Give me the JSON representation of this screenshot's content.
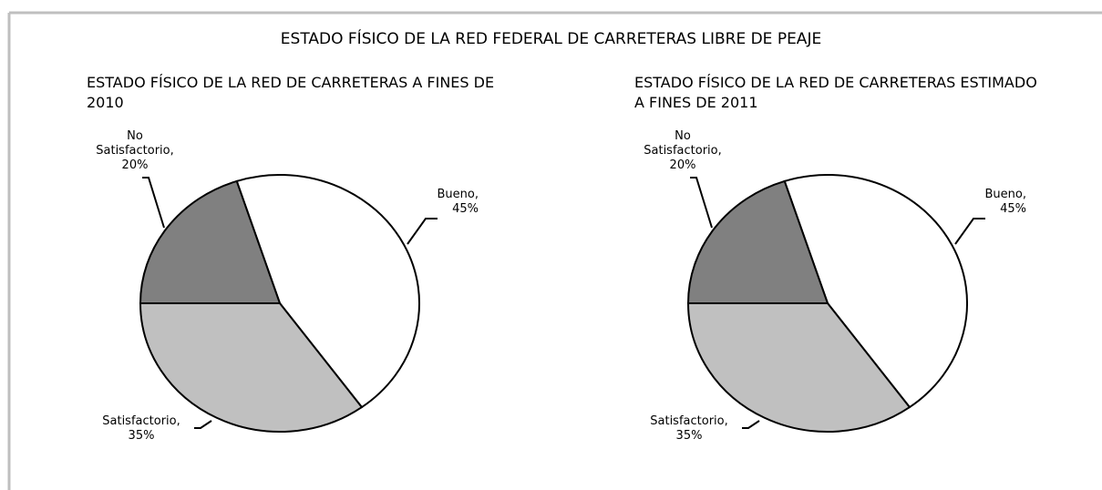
{
  "title": "ESTADO FÍSICO DE LA RED FEDERAL DE CARRETERAS LIBRE DE PEAJE",
  "chart_data": [
    {
      "type": "pie",
      "title": "ESTADO FÍSICO DE LA RED DE CARRETERAS A FINES DE 2010",
      "categories": [
        "Bueno,",
        "Satisfactorio,",
        "No Satisfactorio,"
      ],
      "values": [
        45,
        35,
        20
      ],
      "value_labels": [
        "45%",
        "35%",
        "20%"
      ],
      "colors": [
        "#ffffff",
        "#c0c0c0",
        "#808080"
      ],
      "startangle": -18
    },
    {
      "type": "pie",
      "title": "ESTADO FÍSICO DE LA RED DE CARRETERAS ESTIMADO A FINES DE 2011",
      "categories": [
        "Bueno,",
        "Satisfactorio,",
        "No Satisfactorio,"
      ],
      "values": [
        45,
        35,
        20
      ],
      "value_labels": [
        "45%",
        "35%",
        "20%"
      ],
      "colors": [
        "#ffffff",
        "#c0c0c0",
        "#808080"
      ],
      "startangle": -18
    }
  ]
}
